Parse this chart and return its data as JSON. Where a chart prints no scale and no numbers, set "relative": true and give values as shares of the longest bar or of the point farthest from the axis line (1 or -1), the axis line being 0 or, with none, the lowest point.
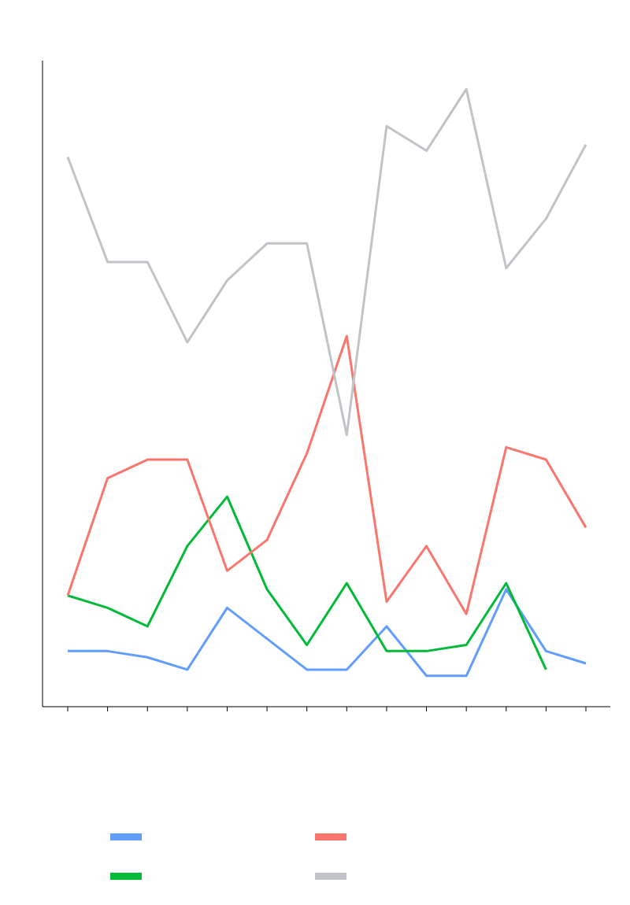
{
  "chart_data": {
    "type": "line",
    "relative": true,
    "categories": [
      null,
      null,
      null,
      null,
      null,
      null,
      null,
      null,
      null,
      null,
      null,
      null,
      null,
      null
    ],
    "series": [
      {
        "color": "#619cff",
        "values": [
          0.09,
          0.09,
          0.08,
          0.06,
          0.16,
          0.11,
          0.06,
          0.06,
          0.13,
          0.05,
          0.05,
          0.19,
          0.09,
          0.07
        ]
      },
      {
        "color": "#00ba38",
        "values": [
          0.18,
          0.16,
          0.13,
          0.26,
          0.34,
          0.19,
          0.1,
          0.2,
          0.09,
          0.09,
          0.1,
          0.2,
          0.06,
          null
        ]
      },
      {
        "color": "#f8766d",
        "values": [
          0.18,
          0.37,
          0.4,
          0.4,
          0.22,
          0.27,
          0.41,
          0.6,
          0.17,
          0.26,
          0.15,
          0.42,
          0.4,
          0.29
        ]
      },
      {
        "color": "#c0c4c8",
        "values": [
          0.89,
          0.72,
          0.72,
          0.59,
          0.69,
          0.75,
          0.75,
          0.44,
          0.94,
          0.9,
          1,
          0.71,
          0.79,
          0.91
        ]
      }
    ],
    "grid": false,
    "marker": "none",
    "line_style": "solid"
  }
}
